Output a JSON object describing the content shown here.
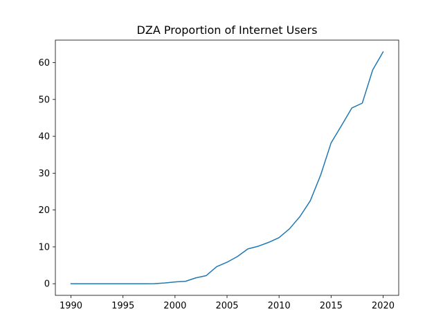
{
  "chart_data": {
    "type": "line",
    "title": "DZA Proportion of Internet Users",
    "xlabel": "",
    "ylabel": "",
    "xlim": [
      1988.5,
      2021.5
    ],
    "ylim": [
      -3.15,
      66.1
    ],
    "x_ticks": [
      "1990",
      "1995",
      "2000",
      "2005",
      "2010",
      "2015",
      "2020"
    ],
    "y_ticks": [
      "0",
      "10",
      "20",
      "30",
      "40",
      "50",
      "60"
    ],
    "grid": false,
    "legend": "none",
    "line_color": "#1f77b4",
    "series": [
      {
        "x": [
          1990,
          1991,
          1992,
          1993,
          1994,
          1995,
          1996,
          1997,
          1998,
          1999,
          2000,
          2001,
          2002,
          2003,
          2004,
          2005,
          2006,
          2007,
          2008,
          2009,
          2010,
          2011,
          2012,
          2013,
          2014,
          2015,
          2016,
          2017,
          2018,
          2019,
          2020
        ],
        "values": [
          0,
          0,
          0,
          0,
          0,
          0,
          0.001,
          0.003,
          0.02,
          0.2,
          0.49,
          0.65,
          1.59,
          2.2,
          4.63,
          5.84,
          7.38,
          9.45,
          10.18,
          11.23,
          12.5,
          14.9,
          18.2,
          22.5,
          29.5,
          38.2,
          42.9,
          47.7,
          49.0,
          58.0,
          62.9
        ]
      }
    ]
  }
}
